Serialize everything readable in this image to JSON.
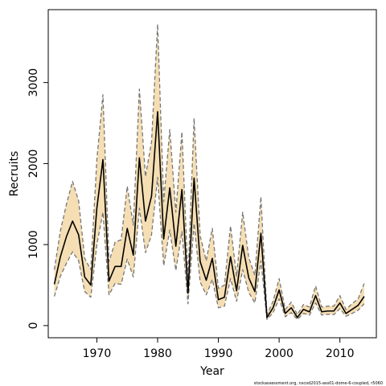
{
  "chart_data": {
    "type": "line",
    "title": "",
    "xlabel": "Year",
    "ylabel": "Recruits",
    "credit": "stockassessment.org, nscod2015-ass01-dome-6-coupled, r5060",
    "xlim": [
      1962,
      2016
    ],
    "ylim": [
      -150,
      3900
    ],
    "x_ticks": [
      1970,
      1980,
      1990,
      2000,
      2010
    ],
    "y_ticks": [
      0,
      1000,
      2000,
      3000
    ],
    "x_tick_labels": [
      "1970",
      "1980",
      "1990",
      "2000",
      "2010"
    ],
    "y_tick_labels": [
      "0",
      "1000",
      "2000",
      "3000"
    ],
    "grid": false,
    "colors": {
      "band": "#f5deb3",
      "bound": "#777777",
      "estimate": "#000000"
    },
    "series": [
      {
        "role": "estimate",
        "x": [
          1963,
          1964,
          1965,
          1966,
          1967,
          1968,
          1969,
          1970,
          1971,
          1972,
          1973,
          1974,
          1975,
          1976,
          1977,
          1978,
          1979,
          1980,
          1981,
          1982,
          1983,
          1984,
          1985,
          1986,
          1987,
          1988,
          1989,
          1990,
          1991,
          1992,
          1993,
          1994,
          1995,
          1996,
          1997,
          1998,
          1999,
          2000,
          2001,
          2002,
          2003,
          2004,
          2005,
          2006,
          2007,
          2008,
          2009,
          2010,
          2011,
          2012,
          2013,
          2014
        ],
        "y": [
          510,
          850,
          1100,
          1290,
          1120,
          600,
          500,
          1450,
          2050,
          550,
          730,
          730,
          1200,
          870,
          2070,
          1290,
          1600,
          2640,
          1070,
          1700,
          980,
          1680,
          400,
          1820,
          790,
          560,
          830,
          320,
          350,
          850,
          430,
          990,
          590,
          420,
          1140,
          100,
          220,
          440,
          150,
          220,
          100,
          200,
          170,
          370,
          170,
          180,
          180,
          280,
          150,
          200,
          250,
          360
        ]
      },
      {
        "role": "lower",
        "x": [
          1963,
          1964,
          1965,
          1966,
          1967,
          1968,
          1969,
          1970,
          1971,
          1972,
          1973,
          1974,
          1975,
          1976,
          1977,
          1978,
          1979,
          1980,
          1981,
          1982,
          1983,
          1984,
          1985,
          1986,
          1987,
          1988,
          1989,
          1990,
          1991,
          1992,
          1993,
          1994,
          1995,
          1996,
          1997,
          1998,
          1999,
          2000,
          2001,
          2002,
          2003,
          2004,
          2005,
          2006,
          2007,
          2008,
          2009,
          2010,
          2011,
          2012,
          2013,
          2014
        ],
        "y": [
          360,
          610,
          770,
          910,
          800,
          420,
          350,
          1000,
          1400,
          380,
          520,
          510,
          820,
          600,
          1450,
          900,
          1120,
          1830,
          740,
          1180,
          680,
          1160,
          270,
          1260,
          540,
          380,
          570,
          220,
          240,
          580,
          300,
          690,
          410,
          280,
          800,
          75,
          160,
          330,
          110,
          160,
          75,
          150,
          130,
          280,
          130,
          140,
          135,
          210,
          115,
          150,
          190,
          270
        ]
      },
      {
        "role": "upper",
        "x": [
          1963,
          1964,
          1965,
          1966,
          1967,
          1968,
          1969,
          1970,
          1971,
          1972,
          1973,
          1974,
          1975,
          1976,
          1977,
          1978,
          1979,
          1980,
          1981,
          1982,
          1983,
          1984,
          1985,
          1986,
          1987,
          1988,
          1989,
          1990,
          1991,
          1992,
          1993,
          1994,
          1995,
          1996,
          1997,
          1998,
          1999,
          2000,
          2001,
          2002,
          2003,
          2004,
          2005,
          2006,
          2007,
          2008,
          2009,
          2010,
          2011,
          2012,
          2013,
          2014
        ],
        "y": [
          690,
          1170,
          1500,
          1780,
          1540,
          830,
          690,
          2050,
          2850,
          790,
          1030,
          1060,
          1720,
          1240,
          2920,
          1840,
          2270,
          3720,
          1530,
          2420,
          1400,
          2390,
          580,
          2560,
          1110,
          800,
          1200,
          460,
          500,
          1230,
          610,
          1400,
          840,
          620,
          1590,
          135,
          300,
          580,
          200,
          290,
          135,
          260,
          230,
          490,
          230,
          240,
          240,
          370,
          200,
          270,
          330,
          520
        ]
      }
    ]
  }
}
